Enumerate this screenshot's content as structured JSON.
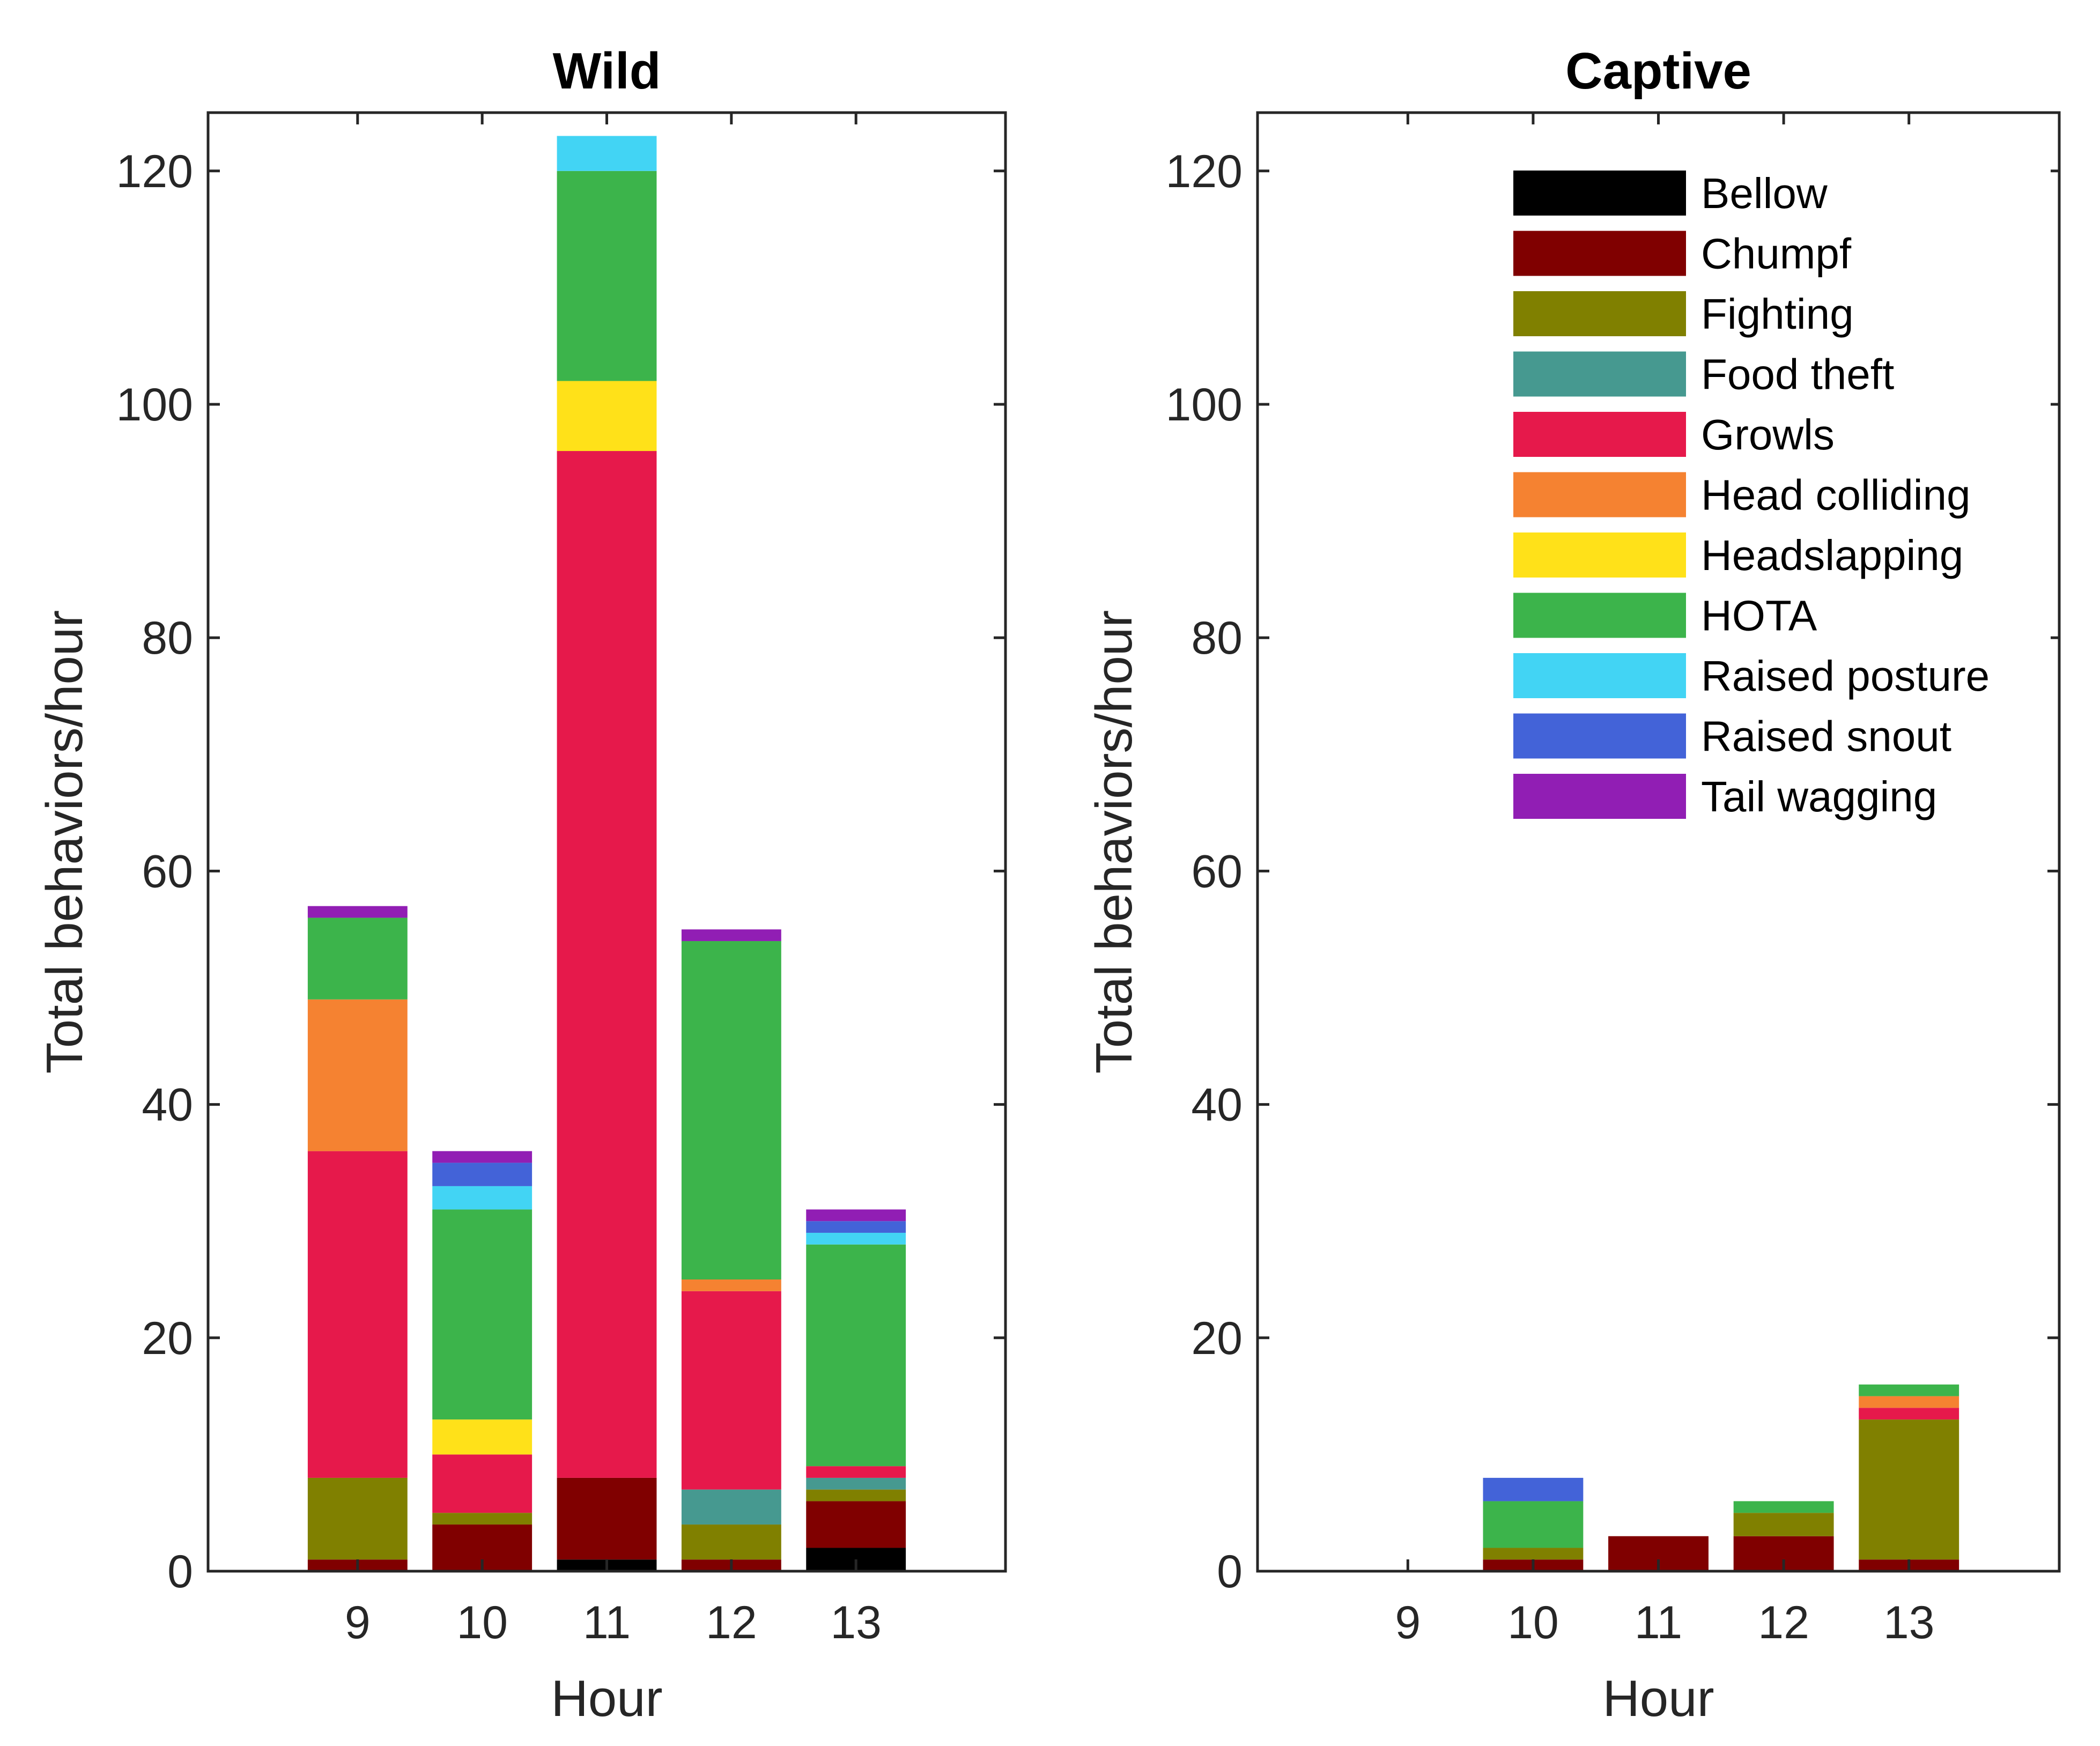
{
  "behaviors": [
    {
      "name": "Bellow",
      "color": "#000000"
    },
    {
      "name": "Chumpf",
      "color": "#800000"
    },
    {
      "name": "Fighting",
      "color": "#808000"
    },
    {
      "name": "Food theft",
      "color": "#469990"
    },
    {
      "name": "Growls",
      "color": "#E6194B"
    },
    {
      "name": "Head colliding",
      "color": "#F58231"
    },
    {
      "name": "Headslapping",
      "color": "#FFE119"
    },
    {
      "name": "HOTA",
      "color": "#3CB44B"
    },
    {
      "name": "Raised posture",
      "color": "#42D4F4"
    },
    {
      "name": "Raised snout",
      "color": "#4363D8"
    },
    {
      "name": "Tail wagging",
      "color": "#911EB4"
    }
  ],
  "chart_data": [
    {
      "type": "bar",
      "stacked": true,
      "title": "Wild",
      "xlabel": "Hour",
      "ylabel": "Total behaviors/hour",
      "categories": [
        "9",
        "10",
        "11",
        "12",
        "13"
      ],
      "xlim": [
        7.8,
        14.2
      ],
      "ylim": [
        0,
        125
      ],
      "yticks": [
        0,
        20,
        40,
        60,
        80,
        100,
        120
      ],
      "legend": null,
      "series": [
        {
          "name": "Bellow",
          "values": [
            0,
            0,
            1,
            0,
            2
          ]
        },
        {
          "name": "Chumpf",
          "values": [
            1,
            4,
            7,
            1,
            4
          ]
        },
        {
          "name": "Fighting",
          "values": [
            7,
            1,
            0,
            3,
            1
          ]
        },
        {
          "name": "Food theft",
          "values": [
            0,
            0,
            0,
            3,
            1
          ]
        },
        {
          "name": "Growls",
          "values": [
            28,
            5,
            88,
            17,
            1
          ]
        },
        {
          "name": "Head colliding",
          "values": [
            13,
            0,
            0,
            1,
            0
          ]
        },
        {
          "name": "Headslapping",
          "values": [
            0,
            3,
            6,
            0,
            0
          ]
        },
        {
          "name": "HOTA",
          "values": [
            7,
            18,
            18,
            29,
            19
          ]
        },
        {
          "name": "Raised posture",
          "values": [
            0,
            2,
            3,
            0,
            1
          ]
        },
        {
          "name": "Raised snout",
          "values": [
            0,
            2,
            0,
            0,
            1
          ]
        },
        {
          "name": "Tail wagging",
          "values": [
            1,
            1,
            0,
            1,
            1
          ]
        }
      ]
    },
    {
      "type": "bar",
      "stacked": true,
      "title": "Captive",
      "xlabel": "Hour",
      "ylabel": "Total behaviors/hour",
      "categories": [
        "9",
        "10",
        "11",
        "12",
        "13"
      ],
      "xlim": [
        7.8,
        14.2
      ],
      "ylim": [
        0,
        125
      ],
      "yticks": [
        0,
        20,
        40,
        60,
        80,
        100,
        120
      ],
      "legend": "top-right",
      "series": [
        {
          "name": "Bellow",
          "values": [
            0,
            0,
            0,
            0,
            0
          ]
        },
        {
          "name": "Chumpf",
          "values": [
            0,
            1,
            3,
            3,
            1
          ]
        },
        {
          "name": "Fighting",
          "values": [
            0,
            1,
            0,
            2,
            12
          ]
        },
        {
          "name": "Food theft",
          "values": [
            0,
            0,
            0,
            0,
            0
          ]
        },
        {
          "name": "Growls",
          "values": [
            0,
            0,
            0,
            0,
            1
          ]
        },
        {
          "name": "Head colliding",
          "values": [
            0,
            0,
            0,
            0,
            1
          ]
        },
        {
          "name": "Headslapping",
          "values": [
            0,
            0,
            0,
            0,
            0
          ]
        },
        {
          "name": "HOTA",
          "values": [
            0,
            4,
            0,
            1,
            1
          ]
        },
        {
          "name": "Raised posture",
          "values": [
            0,
            0,
            0,
            0,
            0
          ]
        },
        {
          "name": "Raised snout",
          "values": [
            0,
            2,
            0,
            0,
            0
          ]
        },
        {
          "name": "Tail wagging",
          "values": [
            0,
            0,
            0,
            0,
            0
          ]
        }
      ]
    }
  ]
}
